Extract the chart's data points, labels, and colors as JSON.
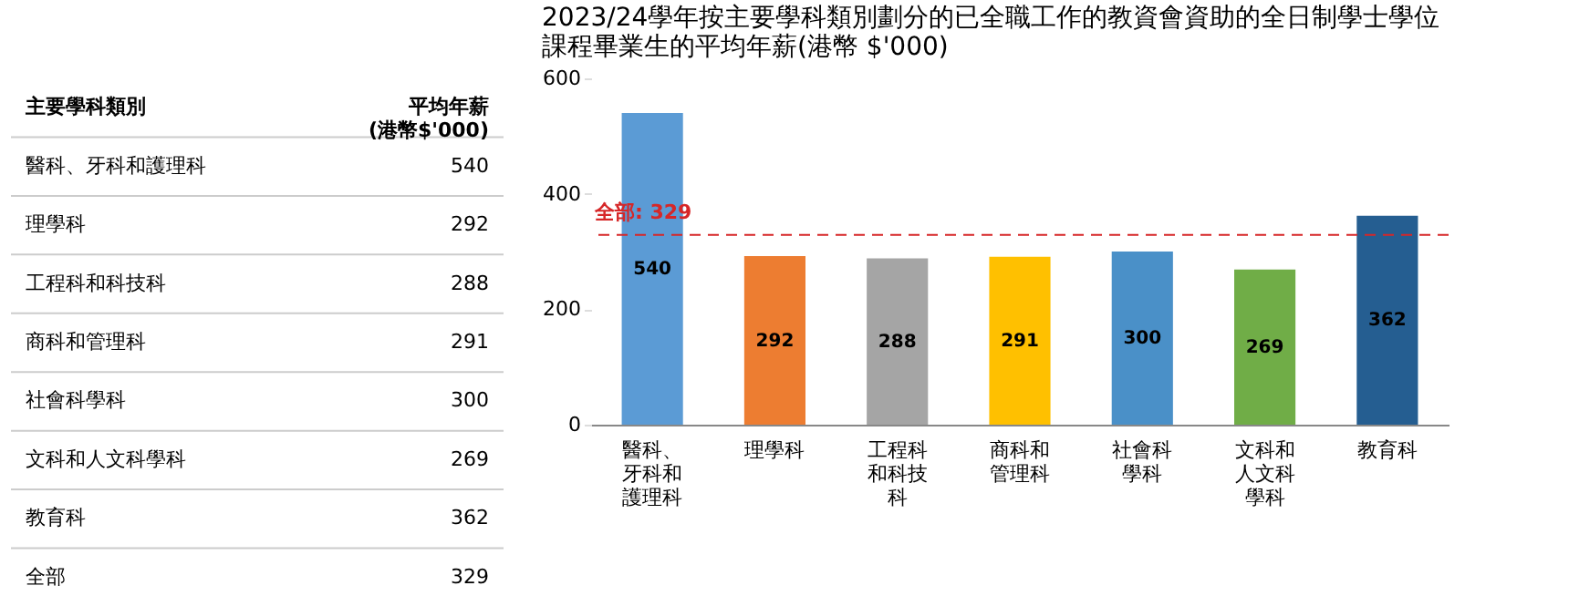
{
  "chart_data": [
    {
      "type": "other",
      "xlabel": "主要學科類別",
      "ylabel": "平均年薪 (港幣$'000)",
      "categories": [
        "醫科、牙科和護理科",
        "理學科",
        "工程科和科技科",
        "商科和管理科",
        "社會科學科",
        "文科和人文科學科",
        "教育科",
        "全部"
      ],
      "values": [
        540,
        292,
        288,
        291,
        300,
        269,
        362,
        329
      ],
      "data_labels": true
    },
    {
      "type": "bar",
      "title": "2023/24學年按主要學科類別劃分的已全職工作的教資會資助的全日制學士學位課程畢業生的平均年薪(港幣 $'000)",
      "categories": [
        "醫科、牙科和護理科",
        "理學科",
        "工程科和科技科",
        "商科和管理科",
        "社會科學科",
        "文科和人文科學科",
        "教育科"
      ],
      "values": [
        540,
        292,
        288,
        291,
        300,
        269,
        362
      ],
      "colors": [
        "#5b9bd5",
        "#ed7d31",
        "#a5a5a5",
        "#ffc000",
        "#4a90c8",
        "#70ad47",
        "#255e91"
      ],
      "ylim": [
        0,
        600
      ],
      "yticks": [
        0,
        200,
        400,
        600
      ],
      "grid": false,
      "data_labels": true,
      "ref_lines": [
        {
          "axis": "y",
          "value": 329,
          "label": "全部: 329",
          "color": "#d62728",
          "line_style": "dashed"
        }
      ]
    }
  ]
}
